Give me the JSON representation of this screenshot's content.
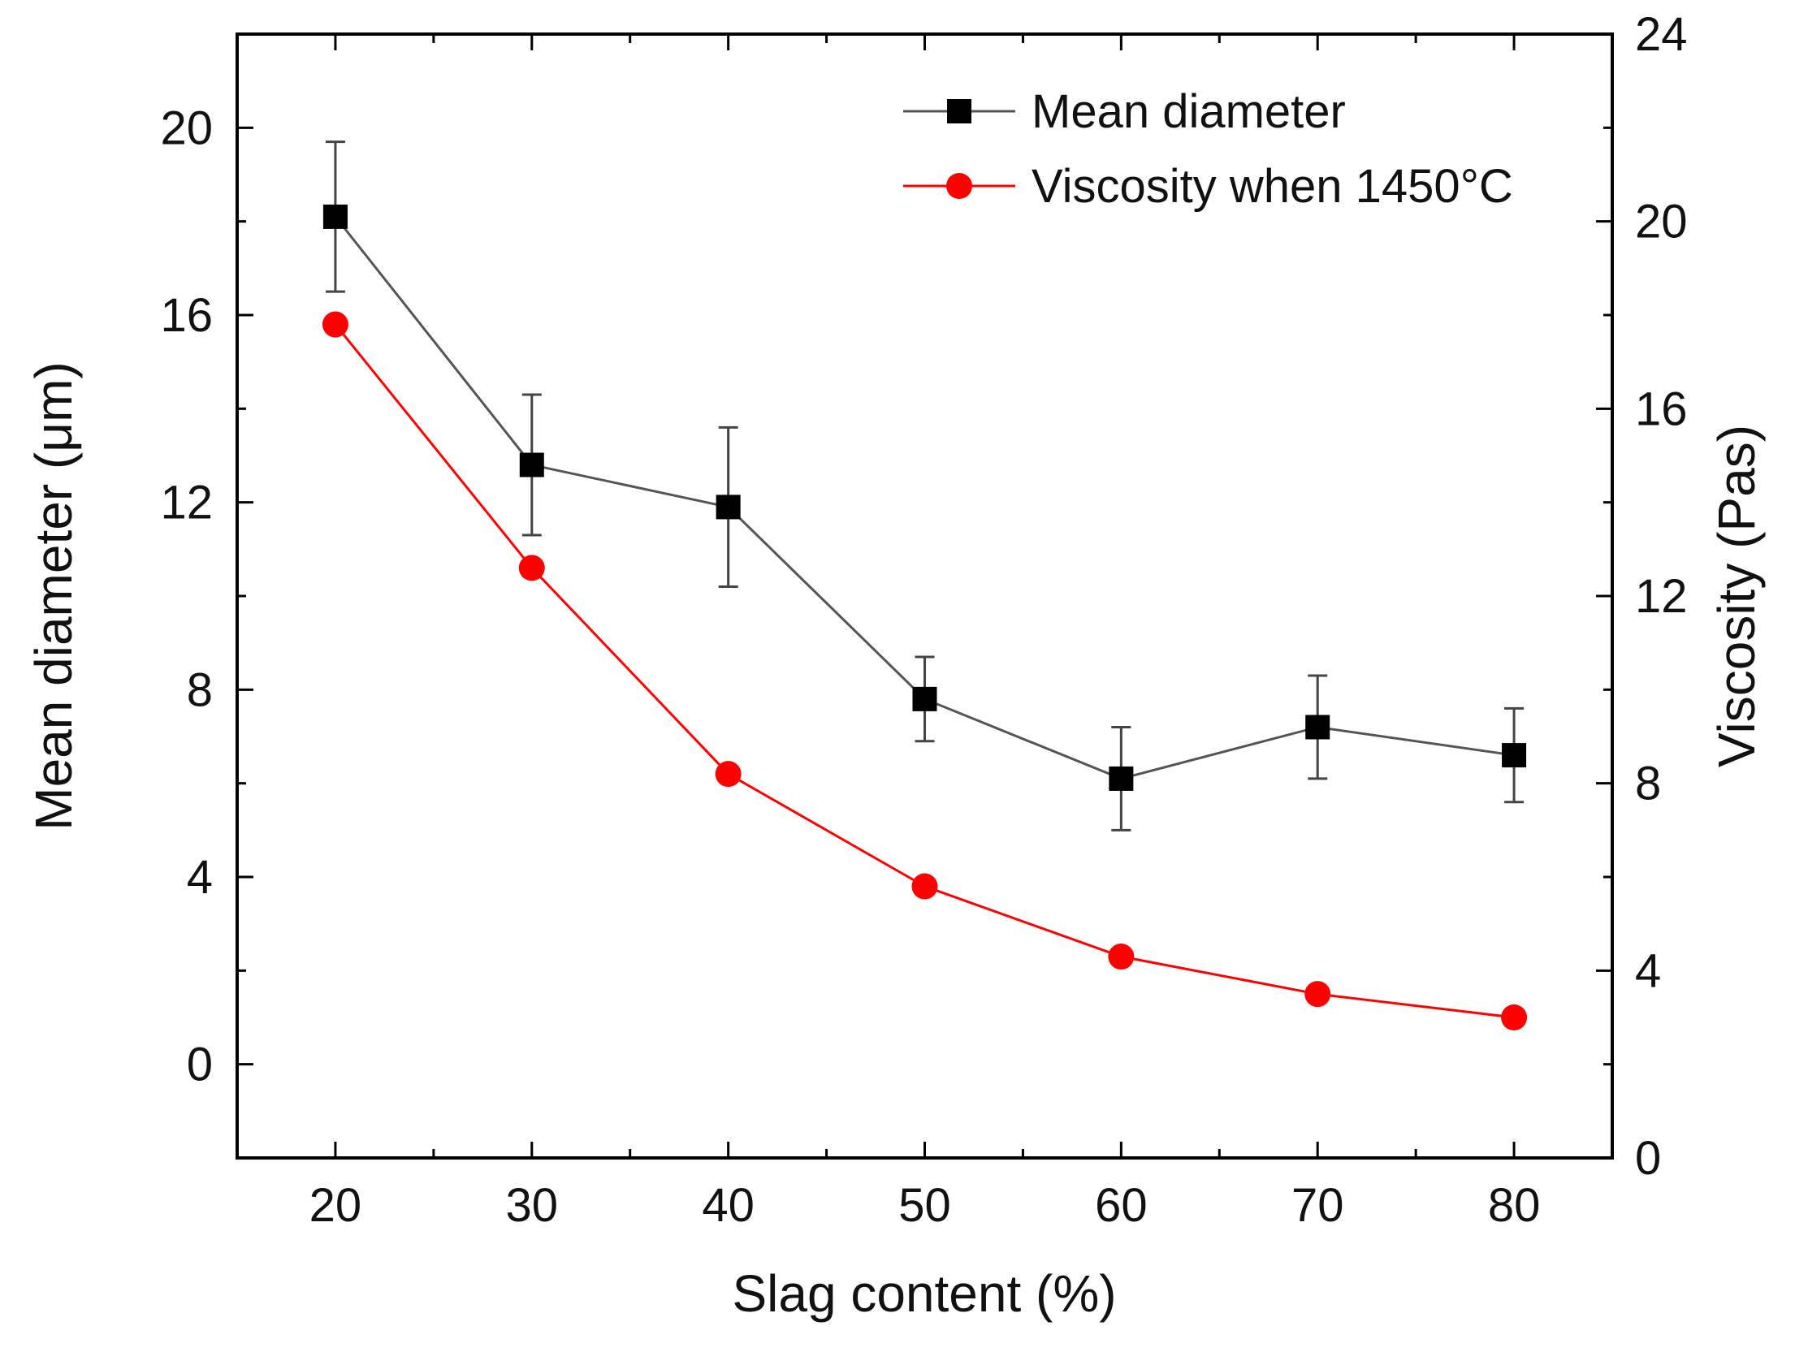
{
  "chart_data": {
    "type": "line",
    "title": "",
    "xlabel": "Slag content (%)",
    "ylabel_left": "Mean diameter (μm)",
    "ylabel_right": "Viscosity (Pas)",
    "x": [
      20,
      30,
      40,
      50,
      60,
      70,
      80
    ],
    "xlim": [
      15,
      85
    ],
    "ylim_left": [
      -2,
      22
    ],
    "ylim_right": [
      0,
      24
    ],
    "x_ticks": [
      "20",
      "30",
      "40",
      "50",
      "60",
      "70",
      "80"
    ],
    "y_ticks_left": [
      "0",
      "4",
      "8",
      "12",
      "16",
      "20"
    ],
    "y_ticks_right": [
      "0",
      "4",
      "8",
      "12",
      "16",
      "20",
      "24"
    ],
    "legend_position": "top-right",
    "series": [
      {
        "name": "Mean diameter",
        "axis": "left",
        "color": "#000000",
        "line_color": "#555555",
        "marker": "square",
        "values": [
          18.1,
          12.8,
          11.9,
          7.8,
          6.1,
          7.2,
          6.6
        ],
        "error": [
          1.6,
          1.5,
          1.7,
          0.9,
          1.1,
          1.1,
          1.0
        ]
      },
      {
        "name": "Viscosity when 1450°C",
        "axis": "right",
        "color": "#ff0000",
        "line_color": "#ff0000",
        "marker": "circle",
        "values": [
          17.8,
          12.6,
          8.2,
          5.8,
          4.3,
          3.5,
          3.0
        ]
      }
    ]
  }
}
